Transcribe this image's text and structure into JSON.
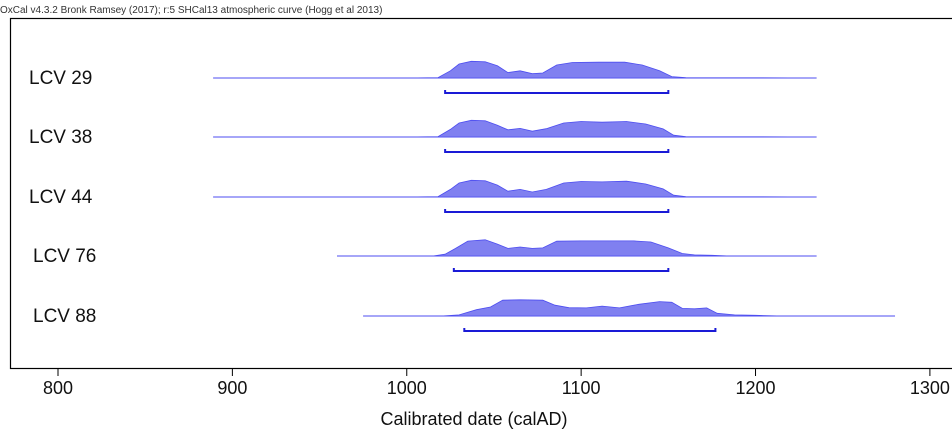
{
  "header": {
    "text": "OxCal v4.3.2 Bronk Ramsey (2017); r:5 SHCal13 atmospheric curve (Hogg et al 2013)"
  },
  "colors": {
    "fill": "#8080f0",
    "stroke": "#4d4df0",
    "range_bar": "#1a1ad6",
    "frame": "#000000"
  },
  "chart_data": {
    "type": "area",
    "title": "",
    "xlabel": "Calibrated date (calAD)",
    "ylabel": "",
    "xlim": [
      776,
      1300
    ],
    "xticks": [
      800,
      900,
      1000,
      1100,
      1200,
      1300
    ],
    "samples": [
      {
        "name": "LCV 29",
        "range": [
          889,
          1235
        ],
        "density": [
          [
            889,
            0
          ],
          [
            1000,
            0
          ],
          [
            1018,
            0.02
          ],
          [
            1025,
            0.4
          ],
          [
            1030,
            0.78
          ],
          [
            1037,
            0.93
          ],
          [
            1045,
            0.9
          ],
          [
            1052,
            0.68
          ],
          [
            1058,
            0.3
          ],
          [
            1065,
            0.4
          ],
          [
            1072,
            0.24
          ],
          [
            1078,
            0.28
          ],
          [
            1086,
            0.72
          ],
          [
            1095,
            0.86
          ],
          [
            1110,
            0.88
          ],
          [
            1125,
            0.88
          ],
          [
            1135,
            0.72
          ],
          [
            1145,
            0.4
          ],
          [
            1152,
            0.08
          ],
          [
            1160,
            0.02
          ],
          [
            1235,
            0
          ]
        ],
        "hpd": [
          1022,
          1150
        ]
      },
      {
        "name": "LCV 38",
        "range": [
          889,
          1235
        ],
        "density": [
          [
            889,
            0
          ],
          [
            1000,
            0
          ],
          [
            1018,
            0.02
          ],
          [
            1025,
            0.42
          ],
          [
            1030,
            0.78
          ],
          [
            1037,
            0.93
          ],
          [
            1045,
            0.9
          ],
          [
            1052,
            0.65
          ],
          [
            1058,
            0.4
          ],
          [
            1065,
            0.48
          ],
          [
            1072,
            0.32
          ],
          [
            1080,
            0.46
          ],
          [
            1090,
            0.78
          ],
          [
            1100,
            0.86
          ],
          [
            1112,
            0.82
          ],
          [
            1126,
            0.86
          ],
          [
            1137,
            0.72
          ],
          [
            1147,
            0.45
          ],
          [
            1153,
            0.1
          ],
          [
            1160,
            0.02
          ],
          [
            1235,
            0
          ]
        ],
        "hpd": [
          1022,
          1150
        ]
      },
      {
        "name": "LCV 44",
        "range": [
          889,
          1235
        ],
        "density": [
          [
            889,
            0
          ],
          [
            1000,
            0
          ],
          [
            1018,
            0.02
          ],
          [
            1025,
            0.42
          ],
          [
            1030,
            0.78
          ],
          [
            1037,
            0.93
          ],
          [
            1045,
            0.9
          ],
          [
            1052,
            0.66
          ],
          [
            1058,
            0.32
          ],
          [
            1065,
            0.42
          ],
          [
            1072,
            0.28
          ],
          [
            1080,
            0.42
          ],
          [
            1090,
            0.78
          ],
          [
            1100,
            0.86
          ],
          [
            1112,
            0.84
          ],
          [
            1126,
            0.88
          ],
          [
            1137,
            0.72
          ],
          [
            1147,
            0.45
          ],
          [
            1153,
            0.1
          ],
          [
            1160,
            0.02
          ],
          [
            1235,
            0
          ]
        ],
        "hpd": [
          1022,
          1150
        ]
      },
      {
        "name": "LCV 76",
        "range": [
          960,
          1235
        ],
        "density": [
          [
            960,
            0
          ],
          [
            1015,
            0
          ],
          [
            1022,
            0.1
          ],
          [
            1028,
            0.42
          ],
          [
            1035,
            0.83
          ],
          [
            1045,
            0.9
          ],
          [
            1052,
            0.66
          ],
          [
            1058,
            0.42
          ],
          [
            1065,
            0.5
          ],
          [
            1072,
            0.42
          ],
          [
            1078,
            0.45
          ],
          [
            1086,
            0.82
          ],
          [
            1100,
            0.84
          ],
          [
            1115,
            0.84
          ],
          [
            1130,
            0.84
          ],
          [
            1140,
            0.78
          ],
          [
            1150,
            0.45
          ],
          [
            1158,
            0.14
          ],
          [
            1165,
            0.06
          ],
          [
            1175,
            0.04
          ],
          [
            1185,
            0
          ],
          [
            1235,
            0
          ]
        ],
        "hpd": [
          1027,
          1150
        ]
      },
      {
        "name": "LCV 88",
        "range": [
          975,
          1280
        ],
        "density": [
          [
            975,
            0
          ],
          [
            1020,
            0
          ],
          [
            1030,
            0.06
          ],
          [
            1040,
            0.35
          ],
          [
            1048,
            0.5
          ],
          [
            1055,
            0.88
          ],
          [
            1065,
            0.9
          ],
          [
            1078,
            0.88
          ],
          [
            1085,
            0.6
          ],
          [
            1093,
            0.46
          ],
          [
            1103,
            0.45
          ],
          [
            1112,
            0.55
          ],
          [
            1122,
            0.45
          ],
          [
            1133,
            0.65
          ],
          [
            1145,
            0.8
          ],
          [
            1152,
            0.76
          ],
          [
            1158,
            0.42
          ],
          [
            1165,
            0.4
          ],
          [
            1172,
            0.45
          ],
          [
            1178,
            0.15
          ],
          [
            1188,
            0.06
          ],
          [
            1200,
            0.04
          ],
          [
            1215,
            0
          ],
          [
            1280,
            0
          ]
        ],
        "hpd": [
          1033,
          1177
        ]
      }
    ]
  }
}
